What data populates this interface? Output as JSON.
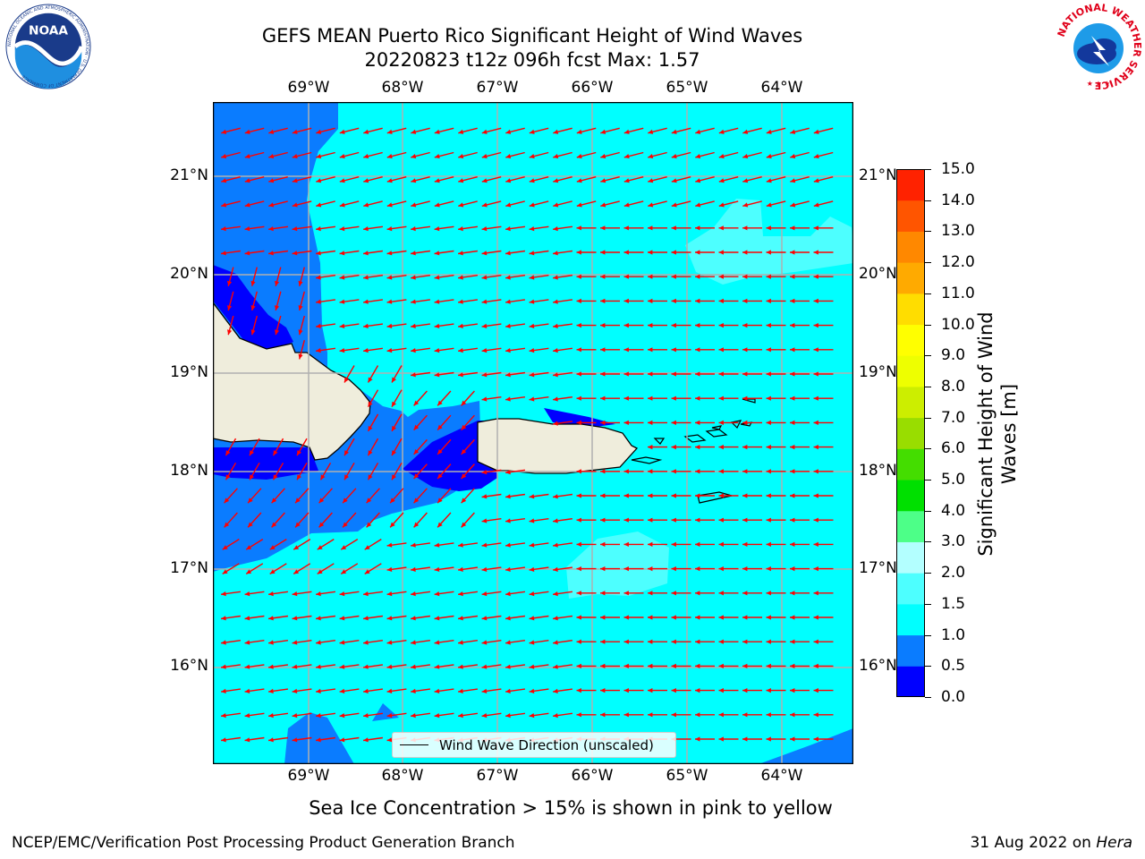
{
  "header": {
    "title_line1": "GEFS MEAN Puerto Rico Significant Height of Wind Waves",
    "title_line2": "20220823 t12z 096h fcst   Max: 1.57"
  },
  "logos": {
    "noaa_text": "NOAA",
    "noaa_ring_text": "NATIONAL OCEANIC AND ATMOSPHERIC ADMINISTRATION · U.S. DEPARTMENT OF COMMERCE",
    "nws_ring_text": "NATIONAL WEATHER SERVICE"
  },
  "axes": {
    "lon_labels": [
      "69°W",
      "68°W",
      "67°W",
      "66°W",
      "65°W",
      "64°W"
    ],
    "lat_labels": [
      "21°N",
      "20°N",
      "19°N",
      "18°N",
      "17°N",
      "16°N"
    ]
  },
  "legend": {
    "label": "Wind Wave Direction (unscaled)"
  },
  "colorbar": {
    "label": "Significant Height of Wind Waves [m]",
    "ticks": [
      "0.0",
      "0.5",
      "1.0",
      "1.5",
      "2.0",
      "3.0",
      "4.0",
      "5.0",
      "6.0",
      "7.0",
      "8.0",
      "9.0",
      "10.0",
      "11.0",
      "12.0",
      "13.0",
      "14.0",
      "15.0"
    ],
    "colors": [
      "#0000ff",
      "#0a7cff",
      "#00ffff",
      "#4dffff",
      "#b3ffff",
      "#4dff88",
      "#00e000",
      "#44dd00",
      "#99dd00",
      "#ccee00",
      "#eeff00",
      "#ffff00",
      "#ffdd00",
      "#ffaa00",
      "#ff8800",
      "#ff5500",
      "#ff2200"
    ]
  },
  "map_colors": {
    "land": "#efeddc",
    "arrow": "#ff0000",
    "grid": "#b0b0b0"
  },
  "note": "Sea Ice Concentration > 15% is shown in pink to yellow",
  "footer": {
    "left": "NCEP/EMC/Verification Post Processing Product Generation Branch",
    "right_date": "31 Aug 2022 on",
    "right_host": "Hera"
  }
}
